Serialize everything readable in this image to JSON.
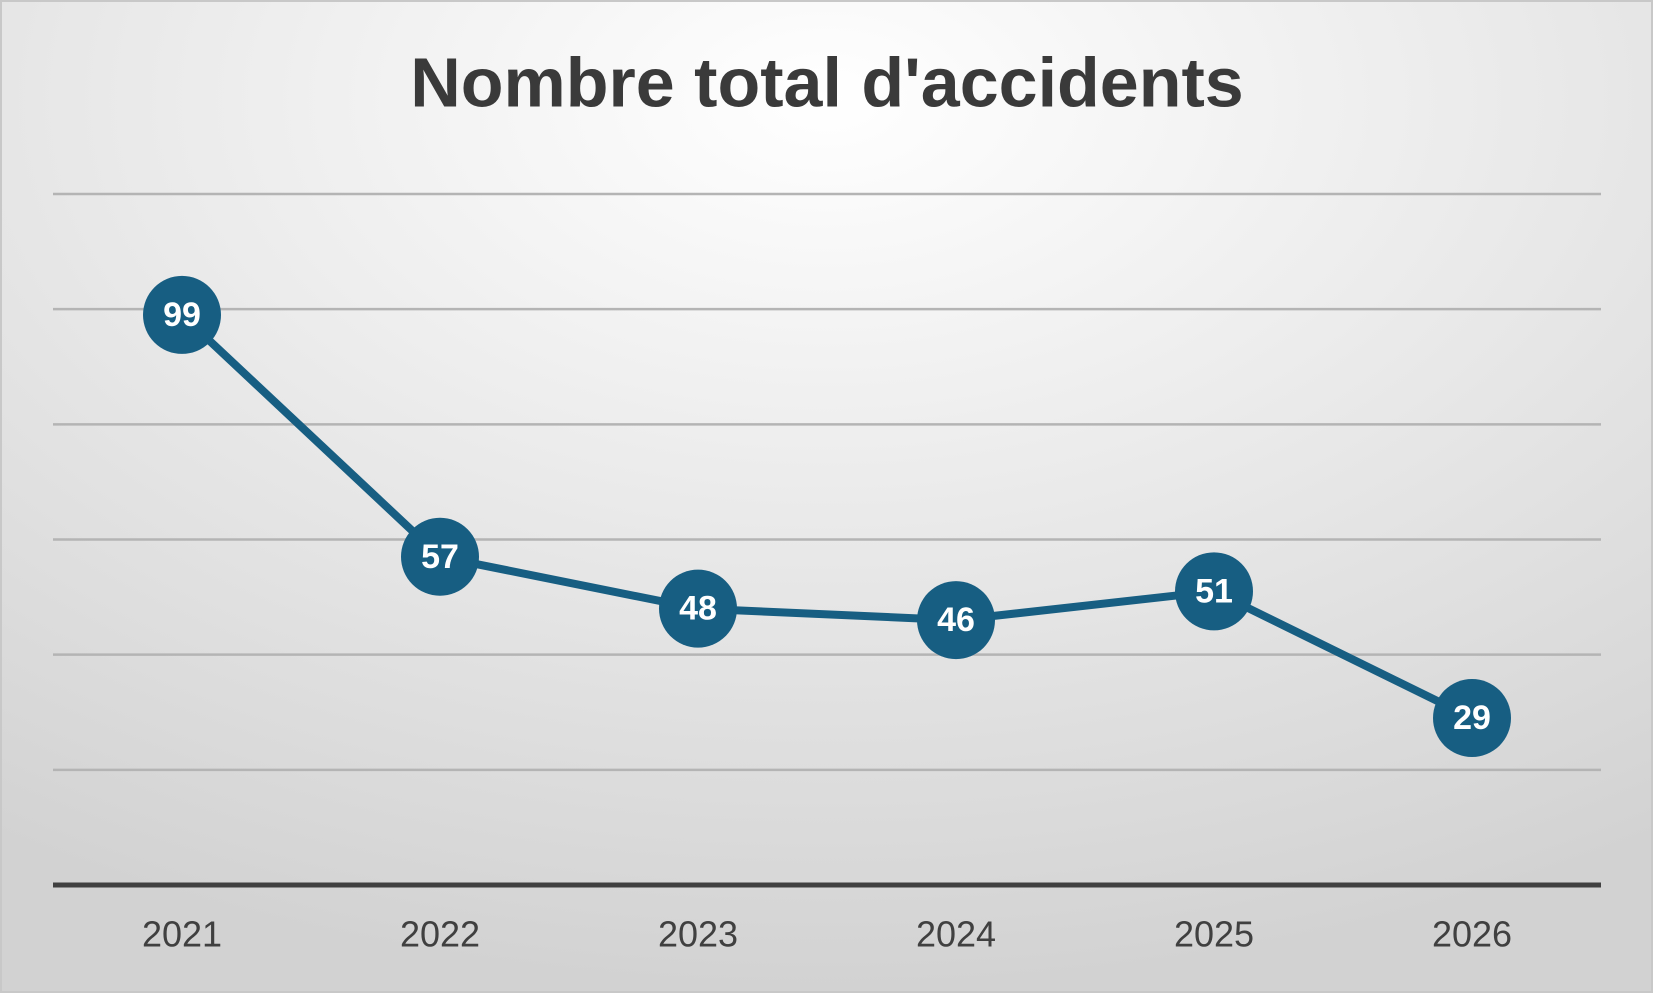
{
  "chart_data": {
    "type": "line",
    "title": "Nombre total d'accidents",
    "categories": [
      "2021",
      "2022",
      "2023",
      "2024",
      "2025",
      "2026"
    ],
    "values": [
      99,
      57,
      48,
      46,
      51,
      29
    ],
    "color": "#175e82",
    "ylim": [
      0,
      120
    ],
    "yticks": [
      0,
      20,
      40,
      60,
      80,
      100,
      120
    ],
    "grid": true
  }
}
